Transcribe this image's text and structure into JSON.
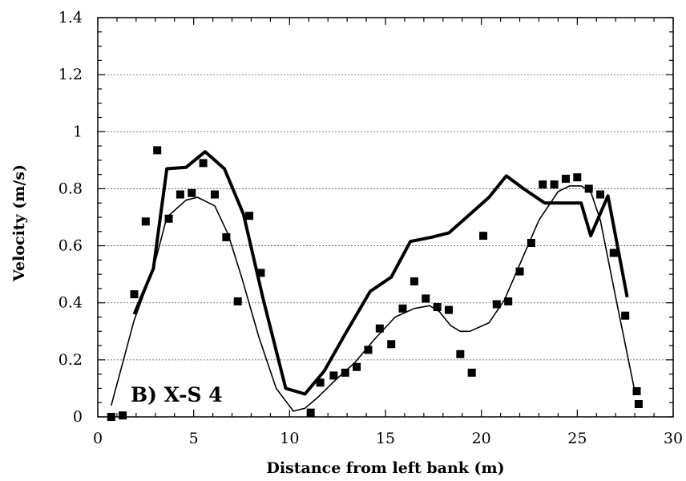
{
  "chart_data": {
    "type": "line",
    "xlabel": "Distance from left bank (m)",
    "ylabel": "Velocity (m/s)",
    "annotation": "B) X-S 4",
    "xlim": [
      0,
      30
    ],
    "ylim": [
      0,
      1.4
    ],
    "xticks": [
      0,
      5,
      10,
      15,
      20,
      25,
      30
    ],
    "yticks": [
      0,
      0.2,
      0.4,
      0.6,
      0.8,
      1,
      1.2,
      1.4
    ],
    "xtick_labels": [
      "0",
      "5",
      "10",
      "15",
      "20",
      "25",
      "30"
    ],
    "ytick_labels": [
      "0",
      "0.2",
      "0.4",
      "0.6",
      "0.8",
      "1",
      "1.2",
      "1.4"
    ],
    "grid": "horizontal dotted",
    "series": [
      {
        "style": "thick-line",
        "x": [
          1.9,
          2.9,
          3.6,
          4.6,
          5.6,
          6.6,
          7.6,
          8.6,
          9.8,
          10.8,
          11.8,
          12.9,
          14.2,
          15.3,
          16.3,
          17.4,
          18.3,
          19.4,
          20.4,
          21.3,
          22.2,
          23.3,
          24.2,
          25.2,
          25.7,
          26.6,
          27.6
        ],
        "y": [
          0.36,
          0.52,
          0.87,
          0.875,
          0.93,
          0.87,
          0.71,
          0.42,
          0.1,
          0.08,
          0.16,
          0.29,
          0.44,
          0.49,
          0.615,
          0.63,
          0.645,
          0.71,
          0.77,
          0.845,
          0.8,
          0.75,
          0.75,
          0.75,
          0.635,
          0.775,
          0.42
        ]
      },
      {
        "style": "thin-line",
        "x": [
          0.7,
          1.9,
          2.9,
          3.6,
          4.6,
          5.2,
          6.1,
          6.8,
          7.5,
          8.4,
          9.3,
          10.2,
          10.8,
          11.5,
          12.4,
          13.4,
          14.4,
          15.5,
          16.5,
          17.3,
          17.8,
          18.4,
          18.9,
          19.4,
          20.4,
          21.2,
          22.1,
          23.0,
          24.0,
          24.6,
          25.2,
          25.7,
          26.2,
          27.0,
          28.0
        ],
        "y": [
          0.04,
          0.34,
          0.52,
          0.7,
          0.76,
          0.77,
          0.74,
          0.64,
          0.49,
          0.28,
          0.1,
          0.02,
          0.03,
          0.07,
          0.13,
          0.19,
          0.27,
          0.35,
          0.38,
          0.39,
          0.37,
          0.32,
          0.3,
          0.3,
          0.33,
          0.41,
          0.55,
          0.69,
          0.79,
          0.81,
          0.81,
          0.79,
          0.69,
          0.42,
          0.09
        ]
      },
      {
        "style": "markers",
        "x": [
          0.7,
          1.3,
          1.9,
          2.5,
          3.1,
          3.7,
          4.3,
          4.9,
          5.5,
          6.1,
          6.7,
          7.3,
          7.9,
          8.5,
          11.1,
          11.6,
          12.3,
          12.9,
          13.5,
          14.1,
          14.7,
          15.3,
          15.9,
          16.5,
          17.1,
          17.7,
          18.3,
          18.9,
          19.5,
          20.1,
          20.8,
          21.4,
          22.0,
          22.6,
          23.2,
          23.8,
          24.4,
          25.0,
          25.6,
          26.2,
          26.9,
          27.5,
          28.1,
          28.2
        ],
        "y": [
          0.0,
          0.005,
          0.43,
          0.685,
          0.935,
          0.695,
          0.78,
          0.785,
          0.89,
          0.78,
          0.63,
          0.405,
          0.705,
          0.505,
          0.015,
          0.12,
          0.145,
          0.155,
          0.175,
          0.235,
          0.31,
          0.255,
          0.38,
          0.475,
          0.415,
          0.385,
          0.375,
          0.22,
          0.155,
          0.635,
          0.395,
          0.405,
          0.51,
          0.61,
          0.815,
          0.815,
          0.835,
          0.84,
          0.8,
          0.78,
          0.575,
          0.355,
          0.09,
          0.045
        ]
      }
    ]
  }
}
